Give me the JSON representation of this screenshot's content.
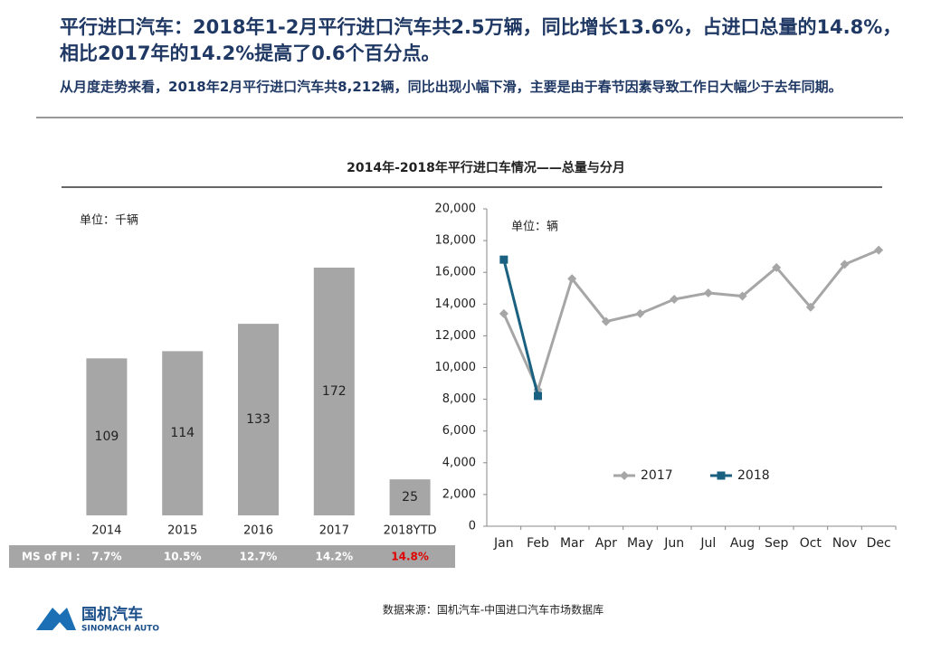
{
  "header": {
    "title": "平行进口汽车：2018年1-2月平行进口汽车共2.5万辆，同比增长13.6%，占进口总量的14.8%，相比2017年的14.2%提高了0.6个百分点。",
    "subtitle": "从月度走势来看，2018年2月平行进口汽车共8,212辆，同比出现小幅下滑，主要是由于春节因素导致工作日大幅少于去年同期。"
  },
  "section_title": "2014年-2018年平行进口车情况——总量与分月",
  "chart_data": [
    {
      "type": "bar",
      "subtitle": "单位：千辆",
      "categories": [
        "2014",
        "2015",
        "2016",
        "2017",
        "2018YTD"
      ],
      "values": [
        109,
        114,
        133,
        172,
        25
      ],
      "color": "#a6a6a6"
    },
    {
      "type": "line",
      "subtitle": "单位：辆",
      "categories": [
        "Jan",
        "Feb",
        "Mar",
        "Apr",
        "May",
        "Jun",
        "Jul",
        "Aug",
        "Sep",
        "Oct",
        "Nov",
        "Dec"
      ],
      "series": [
        {
          "name": "2017",
          "color": "#a6a6a6",
          "marker": "diamond",
          "values": [
            13400,
            8600,
            15600,
            12900,
            13400,
            14300,
            14700,
            14500,
            16300,
            13800,
            16500,
            17400
          ]
        },
        {
          "name": "2018",
          "color": "#1a6080",
          "marker": "square",
          "values": [
            16800,
            8212,
            null,
            null,
            null,
            null,
            null,
            null,
            null,
            null,
            null,
            null
          ]
        }
      ],
      "ylim": [
        0,
        20000
      ],
      "yticks": [
        0,
        {
          "value": 2000,
          "label": "2,000"
        },
        {
          "value": 4000,
          "label": "4,000"
        },
        {
          "value": 6000,
          "label": "6,000"
        },
        {
          "value": 8000,
          "label": "8,000"
        },
        {
          "value": 10000,
          "label": "10,000"
        },
        {
          "value": 12000,
          "label": "12,000"
        },
        {
          "value": 14000,
          "label": "14,000"
        },
        {
          "value": 16000,
          "label": "16,000"
        },
        {
          "value": 18000,
          "label": "18,000"
        },
        {
          "value": 20000,
          "label": "20,000"
        }
      ],
      "legend": "bottom"
    }
  ],
  "ms_row": {
    "label": "MS of PI :",
    "values": [
      "7.7%",
      "10.5%",
      "12.7%",
      "14.2%",
      "14.8%"
    ]
  },
  "source": "数据来源：国机汽车-中国进口汽车市场数据库",
  "logo": {
    "name": "国机汽车",
    "english": "SINOMACH AUTO"
  }
}
